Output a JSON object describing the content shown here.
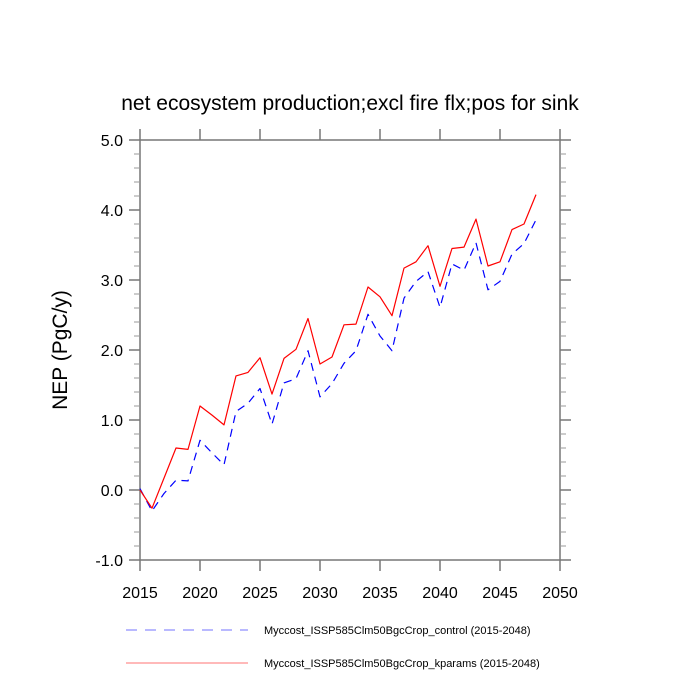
{
  "chart_data": {
    "type": "line",
    "title": "net ecosystem production;excl fire flx;pos for sink",
    "xlabel": "",
    "ylabel": "NEP  (PgC/y)",
    "xlim": [
      2015,
      2050
    ],
    "ylim": [
      -1.0,
      5.0
    ],
    "xticks": [
      2015,
      2020,
      2025,
      2030,
      2035,
      2040,
      2045,
      2050
    ],
    "xtick_labels": [
      "2015",
      "2020",
      "2025",
      "2030",
      "2035",
      "2040",
      "2045",
      "2050"
    ],
    "yticks": [
      -1.0,
      0.0,
      1.0,
      2.0,
      3.0,
      4.0,
      5.0
    ],
    "ytick_labels": [
      "-1.0",
      "0.0",
      "1.0",
      "2.0",
      "3.0",
      "4.0",
      "5.0"
    ],
    "yminor_step": 0.2,
    "grid": false,
    "legend_position": "bottom",
    "x": [
      2015,
      2016,
      2017,
      2018,
      2019,
      2020,
      2021,
      2022,
      2023,
      2024,
      2025,
      2026,
      2027,
      2028,
      2029,
      2030,
      2031,
      2032,
      2033,
      2034,
      2035,
      2036,
      2037,
      2038,
      2039,
      2040,
      2041,
      2042,
      2043,
      2044,
      2045,
      2046,
      2047,
      2048
    ],
    "series": [
      {
        "name": "Myccost_ISSP585Clm50BgcCrop_control (2015-2048)",
        "color": "#0000ff",
        "style": "dashed",
        "values": [
          0.02,
          -0.3,
          -0.05,
          0.14,
          0.13,
          0.71,
          0.53,
          0.36,
          1.12,
          1.24,
          1.45,
          0.94,
          1.53,
          1.59,
          1.99,
          1.33,
          1.52,
          1.81,
          1.99,
          2.51,
          2.2,
          1.99,
          2.74,
          2.98,
          3.12,
          2.61,
          3.23,
          3.14,
          3.53,
          2.86,
          2.98,
          3.37,
          3.52,
          3.86
        ]
      },
      {
        "name": "Myccost_ISSP585Clm50BgcCrop_kparams (2015-2048)",
        "color": "#ff0000",
        "style": "solid",
        "values": [
          0.0,
          -0.26,
          0.17,
          0.6,
          0.58,
          1.2,
          1.07,
          0.93,
          1.63,
          1.68,
          1.89,
          1.37,
          1.88,
          2.01,
          2.45,
          1.8,
          1.9,
          2.36,
          2.37,
          2.9,
          2.76,
          2.49,
          3.17,
          3.26,
          3.49,
          2.91,
          3.45,
          3.47,
          3.87,
          3.2,
          3.26,
          3.72,
          3.8,
          4.22
        ]
      }
    ]
  }
}
